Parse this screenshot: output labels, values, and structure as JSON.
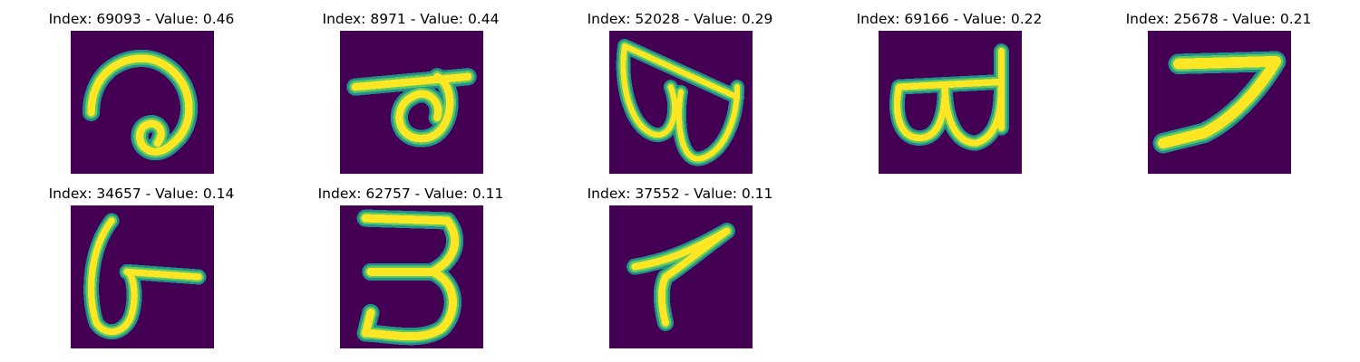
{
  "panels": [
    {
      "title": "Index: 69093 - Value: 0.46",
      "image": "handwritten-digit"
    },
    {
      "title": "Index: 8971 - Value: 0.44",
      "image": "handwritten-digit"
    },
    {
      "title": "Index: 52028 - Value: 0.29",
      "image": "handwritten-digit"
    },
    {
      "title": "Index: 69166 - Value: 0.22",
      "image": "handwritten-digit"
    },
    {
      "title": "Index: 25678 - Value: 0.21",
      "image": "handwritten-digit"
    },
    {
      "title": "Index: 34657 - Value: 0.14",
      "image": "handwritten-digit"
    },
    {
      "title": "Index: 62757 - Value: 0.11",
      "image": "handwritten-digit"
    },
    {
      "title": "Index: 37552 - Value: 0.11",
      "image": "handwritten-digit"
    }
  ],
  "colors": {
    "background": "#440154",
    "stroke_outer": "#21918c",
    "stroke_mid": "#5ec962",
    "stroke_core": "#fde725"
  }
}
